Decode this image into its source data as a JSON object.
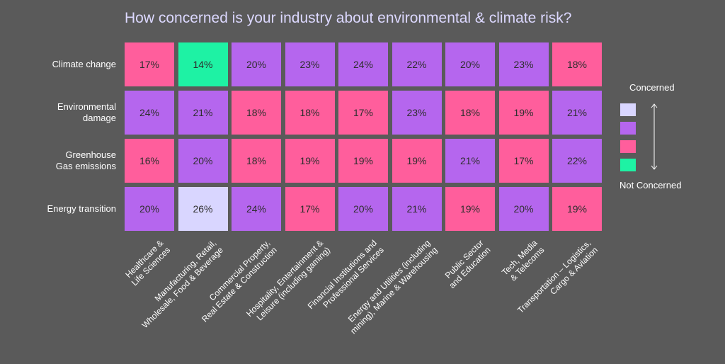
{
  "title": "How concerned is your industry about environmental & climate risk?",
  "colors": {
    "background": "#5a5a5a",
    "very_concerned": "#d9d6ff",
    "concerned": "#b566ee",
    "less_concerned": "#ff5e9c",
    "not_concerned": "#1ef2a4"
  },
  "legend": {
    "top_label": "Concerned",
    "bottom_label": "Not Concerned",
    "levels": [
      "very_concerned",
      "concerned",
      "less_concerned",
      "not_concerned"
    ]
  },
  "chart_data": {
    "type": "heatmap",
    "title": "How concerned is your industry about environmental & climate risk?",
    "rows": [
      [
        "Climate change"
      ],
      [
        "Environmental",
        "damage"
      ],
      [
        "Greenhouse",
        "Gas emissions"
      ],
      [
        "Energy transition"
      ]
    ],
    "columns": [
      [
        "Healthcare &",
        "Life Sciences"
      ],
      [
        "Manufacturing, Retail,",
        "Wholesale, Food & Beverage"
      ],
      [
        "Commercial Property,",
        "Real Estate & Construction"
      ],
      [
        "Hospitality, Entertainment &",
        "Leisure (including gaming)"
      ],
      [
        "Financial Institutions and",
        "Professional Services"
      ],
      [
        "Energy and Utilities (including",
        "mining), Marine & Warehousing"
      ],
      [
        "Public Sector",
        "and Education"
      ],
      [
        "Tech, Media",
        "& Telecoms"
      ],
      [
        "Transportation – Logistics,",
        "Cargo & Aviation"
      ]
    ],
    "values": [
      [
        "17%",
        "14%",
        "20%",
        "23%",
        "24%",
        "22%",
        "20%",
        "23%",
        "18%"
      ],
      [
        "24%",
        "21%",
        "18%",
        "18%",
        "17%",
        "23%",
        "18%",
        "19%",
        "21%"
      ],
      [
        "16%",
        "20%",
        "18%",
        "19%",
        "19%",
        "19%",
        "21%",
        "17%",
        "22%"
      ],
      [
        "20%",
        "26%",
        "24%",
        "17%",
        "20%",
        "21%",
        "19%",
        "20%",
        "19%"
      ]
    ],
    "levels": [
      [
        "less_concerned",
        "not_concerned",
        "concerned",
        "concerned",
        "concerned",
        "concerned",
        "concerned",
        "concerned",
        "less_concerned"
      ],
      [
        "concerned",
        "concerned",
        "less_concerned",
        "less_concerned",
        "less_concerned",
        "concerned",
        "less_concerned",
        "less_concerned",
        "concerned"
      ],
      [
        "less_concerned",
        "concerned",
        "less_concerned",
        "less_concerned",
        "less_concerned",
        "less_concerned",
        "concerned",
        "less_concerned",
        "concerned"
      ],
      [
        "concerned",
        "very_concerned",
        "concerned",
        "less_concerned",
        "concerned",
        "concerned",
        "less_concerned",
        "concerned",
        "less_concerned"
      ]
    ]
  }
}
